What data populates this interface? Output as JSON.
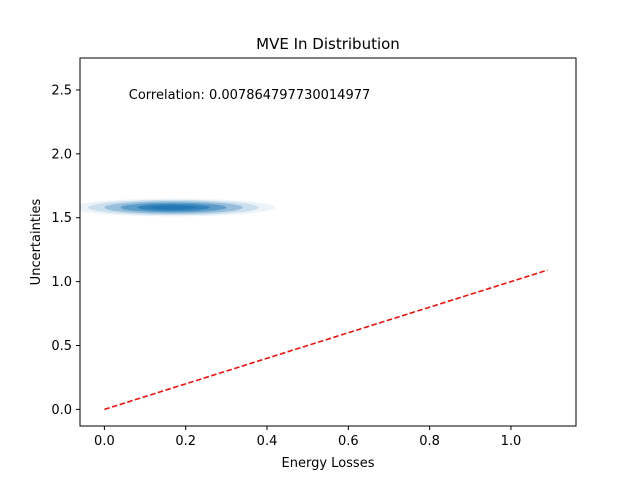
{
  "chart_data": {
    "type": "scatter",
    "title": "MVE In Distribution",
    "xlabel": "Energy Losses",
    "ylabel": "Uncertainties",
    "xlim": [
      -0.06,
      1.16
    ],
    "ylim": [
      -0.13,
      2.75
    ],
    "xticks": [
      0.0,
      0.2,
      0.4,
      0.6,
      0.8,
      1.0
    ],
    "xtick_labels": [
      "0.0",
      "0.2",
      "0.4",
      "0.6",
      "0.8",
      "1.0"
    ],
    "yticks": [
      0.0,
      0.5,
      1.0,
      1.5,
      2.0,
      2.5
    ],
    "ytick_labels": [
      "0.0",
      "0.5",
      "1.0",
      "1.5",
      "2.0",
      "2.5"
    ],
    "grid": false,
    "annotation": {
      "text": "Correlation: 0.007864797730014977",
      "x": 0.06,
      "y": 2.47
    },
    "reference_line": {
      "style": "dashed",
      "color": "#e8150f",
      "x": [
        0.0,
        1.09
      ],
      "y": [
        0.0,
        1.09
      ]
    },
    "density": {
      "color": "#1f77b4",
      "center_x": 0.17,
      "center_y": 1.58,
      "levels": [
        {
          "half_width": 0.25,
          "half_height": 0.07
        },
        {
          "half_width": 0.21,
          "half_height": 0.06
        },
        {
          "half_width": 0.17,
          "half_height": 0.05
        },
        {
          "half_width": 0.13,
          "half_height": 0.038
        },
        {
          "half_width": 0.09,
          "half_height": 0.026
        },
        {
          "half_width": 0.055,
          "half_height": 0.015
        }
      ]
    }
  }
}
